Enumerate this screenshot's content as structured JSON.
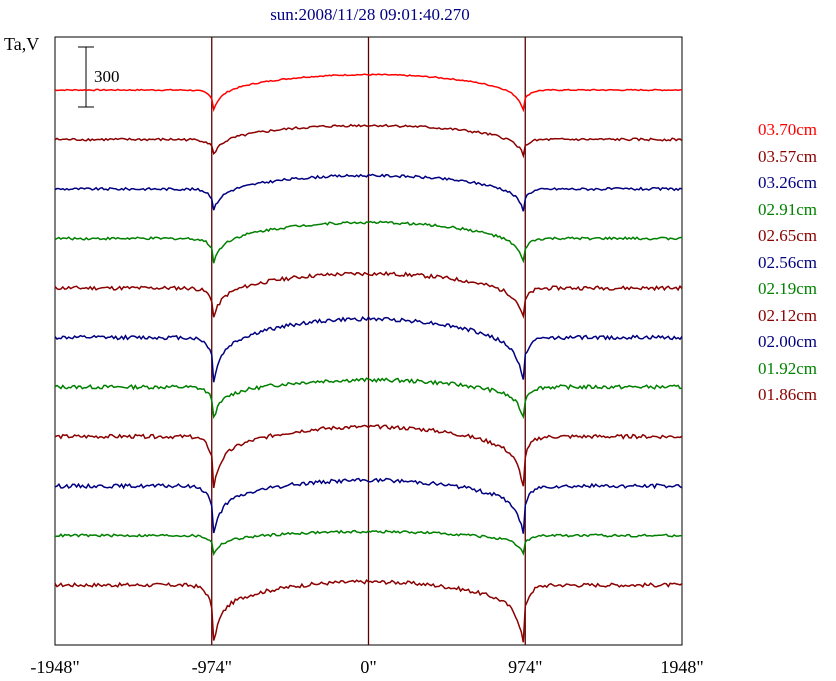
{
  "chart_data": {
    "type": "line",
    "title": "sun:2008/11/28 09:01:40.270",
    "ylabel": "Ta,V",
    "scale_bar_label": "300",
    "x_ticks": [
      {
        "value": -1948,
        "label": "-1948\""
      },
      {
        "value": -974,
        "label": "-974\""
      },
      {
        "value": 0,
        "label": "0\""
      },
      {
        "value": 974,
        "label": "974\""
      },
      {
        "value": 1948,
        "label": "1948\""
      }
    ],
    "xlim": [
      -1948,
      1948
    ],
    "vlines": [
      -974,
      0,
      974
    ],
    "disk_radius": 974,
    "series": [
      {
        "name": "03.70cm",
        "color": "#ff0000",
        "baseline": 0,
        "limb_dip": 75,
        "center_rise": 48,
        "noise": 1
      },
      {
        "name": "03.57cm",
        "color": "#8b0000",
        "baseline": -155,
        "limb_dip": 60,
        "center_rise": 44,
        "noise": 2
      },
      {
        "name": "03.26cm",
        "color": "#000080",
        "baseline": -310,
        "limb_dip": 80,
        "center_rise": 42,
        "noise": 2
      },
      {
        "name": "02.91cm",
        "color": "#008000",
        "baseline": -465,
        "limb_dip": 90,
        "center_rise": 50,
        "noise": 2
      },
      {
        "name": "02.65cm",
        "color": "#8b0000",
        "baseline": -620,
        "limb_dip": 110,
        "center_rise": 45,
        "noise": 3
      },
      {
        "name": "02.56cm",
        "color": "#000080",
        "baseline": -765,
        "limb_dip": 160,
        "center_rise": 58,
        "noise": 3
      },
      {
        "name": "02.19cm",
        "color": "#008000",
        "baseline": -910,
        "limb_dip": 110,
        "center_rise": 22,
        "noise": 3
      },
      {
        "name": "02.12cm",
        "color": "#8b0000",
        "baseline": -1060,
        "limb_dip": 180,
        "center_rise": 30,
        "noise": 3
      },
      {
        "name": "02.00cm",
        "color": "#000080",
        "baseline": -1200,
        "limb_dip": 170,
        "center_rise": 18,
        "noise": 3
      },
      {
        "name": "01.92cm",
        "color": "#008000",
        "baseline": -1350,
        "limb_dip": 65,
        "center_rise": 12,
        "noise": 2
      },
      {
        "name": "01.86cm",
        "color": "#8b0000",
        "baseline": -1500,
        "limb_dip": 200,
        "center_rise": 10,
        "noise": 3
      }
    ]
  }
}
